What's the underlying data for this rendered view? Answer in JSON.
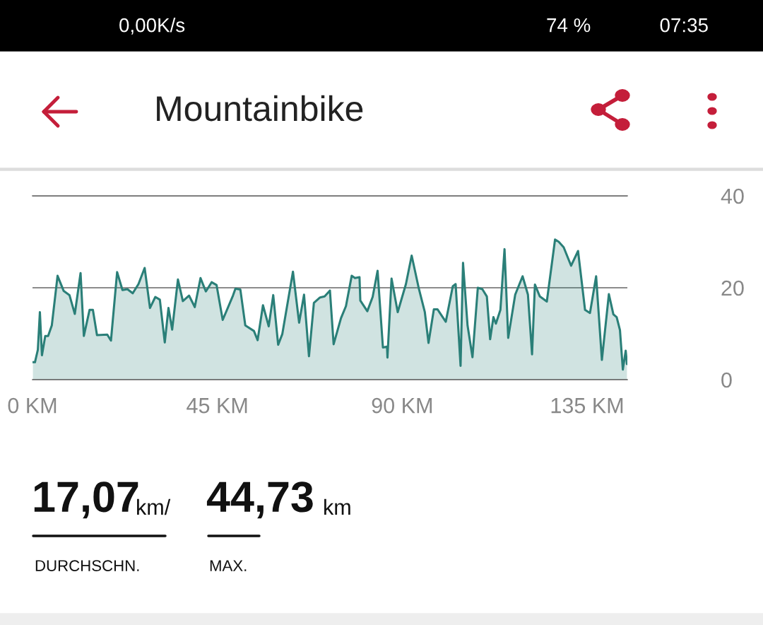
{
  "chart_data": {
    "type": "area",
    "title": "Mountainbike",
    "x": [
      0.1,
      0.6,
      1.3,
      1.8,
      2.3,
      3.1,
      3.8,
      4.7,
      6.1,
      7.6,
      9.0,
      10.3,
      11.7,
      12.5,
      13.9,
      14.7,
      15.7,
      18.2,
      19.1,
      20.6,
      21.9,
      23.1,
      24.4,
      25.8,
      27.3,
      28.6,
      29.9,
      31.0,
      32.2,
      33.1,
      34.0,
      35.4,
      36.6,
      38.1,
      39.5,
      40.9,
      42.2,
      43.6,
      44.8,
      46.3,
      48.8,
      49.4,
      50.6,
      51.8,
      53.9,
      54.8,
      56.1,
      57.5,
      58.6,
      59.8,
      60.8,
      63.4,
      64.9,
      66.1,
      67.3,
      68.5,
      70.0,
      71.1,
      72.4,
      73.3,
      75.1,
      76.3,
      77.7,
      78.5,
      79.6,
      79.8,
      81.5,
      82.8,
      84.0,
      85.3,
      86.3,
      86.4,
      87.4,
      88.9,
      90.9,
      92.3,
      94.0,
      95.5,
      96.4,
      97.7,
      98.6,
      100.6,
      102.3,
      103.0,
      104.2,
      104.8,
      105.9,
      107.1,
      108.4,
      109.5,
      110.6,
      111.4,
      112.2,
      112.8,
      113.9,
      114.9,
      115.8,
      117.5,
      119.3,
      120.6,
      121.6,
      122.3,
      123.5,
      125.2,
      127.2,
      128.1,
      129.3,
      131.1,
      132.8,
      134.5,
      135.7,
      137.2,
      138.6,
      140.3,
      141.4,
      142.2,
      143.0,
      143.7,
      144.4,
      144.7
    ],
    "series": [
      {
        "color": "#2a7f78",
        "values": [
          3.8,
          3.8,
          6.5,
          14.7,
          5.3,
          9.5,
          9.5,
          11.8,
          22.6,
          19.3,
          18.4,
          14.3,
          23.2,
          9.5,
          15.2,
          15.2,
          9.7,
          9.8,
          8.5,
          23.4,
          19.5,
          19.7,
          18.8,
          20.8,
          24.3,
          15.6,
          18.0,
          17.4,
          8.1,
          15.6,
          10.9,
          21.8,
          17.1,
          18.3,
          15.8,
          22.1,
          19.2,
          21.2,
          20.6,
          13.0,
          18.3,
          19.8,
          19.6,
          11.8,
          10.6,
          8.6,
          16.2,
          11.6,
          18.4,
          7.6,
          9.9,
          23.5,
          12.4,
          18.5,
          5.1,
          16.7,
          17.9,
          18.1,
          19.4,
          7.7,
          13.4,
          16.0,
          22.6,
          22.1,
          22.3,
          17.2,
          14.9,
          18.0,
          23.7,
          7.0,
          7.2,
          4.8,
          22.0,
          14.7,
          20.8,
          27.0,
          20.0,
          14.7,
          8.0,
          15.3,
          15.3,
          12.6,
          20.3,
          20.8,
          3.0,
          25.4,
          11.8,
          4.9,
          20.0,
          19.7,
          18.1,
          8.8,
          13.6,
          12.2,
          15.2,
          28.4,
          9.1,
          18.5,
          22.5,
          18.5,
          5.5,
          20.7,
          18.1,
          17.0,
          30.5,
          30.0,
          28.8,
          24.8,
          28.0,
          15.2,
          14.5,
          22.5,
          4.3,
          18.6,
          14.2,
          13.6,
          10.8,
          2.2,
          6.3,
          3.4
        ]
      }
    ],
    "xlim": [
      0,
      144.8
    ],
    "xticks": [
      {
        "value": 0,
        "label": "0 KM"
      },
      {
        "value": 45,
        "label": "45 KM"
      },
      {
        "value": 90,
        "label": "90 KM"
      },
      {
        "value": 135,
        "label": "135 KM"
      }
    ],
    "ylim": [
      0,
      40
    ],
    "yticks": [
      0,
      20,
      40
    ],
    "grid": "y",
    "annotations": [
      "0,00K/s",
      "74 %",
      "07:35",
      "17,07",
      "km/",
      "44,73",
      "km",
      "DURCHSCHN.",
      "MAX."
    ]
  }
}
